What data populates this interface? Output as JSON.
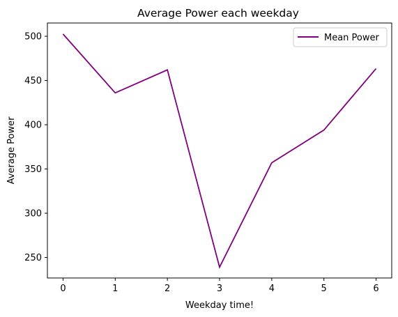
{
  "chart_data": {
    "type": "line",
    "title": "Average Power each weekday",
    "xlabel": "Weekday time!",
    "ylabel": "Average Power",
    "x": [
      0,
      1,
      2,
      3,
      4,
      5,
      6
    ],
    "series": [
      {
        "name": "Mean Power",
        "values": [
          502.5,
          436,
          462,
          239,
          357,
          394,
          463.5
        ],
        "color": "#800080"
      }
    ],
    "xticks": [
      "0",
      "1",
      "2",
      "3",
      "4",
      "5",
      "6"
    ],
    "yticks": [
      250,
      300,
      350,
      400,
      450,
      500
    ],
    "xlim": [
      -0.3,
      6.3
    ],
    "ylim": [
      226.8,
      515
    ],
    "grid": false,
    "legend_position": "top-right"
  }
}
